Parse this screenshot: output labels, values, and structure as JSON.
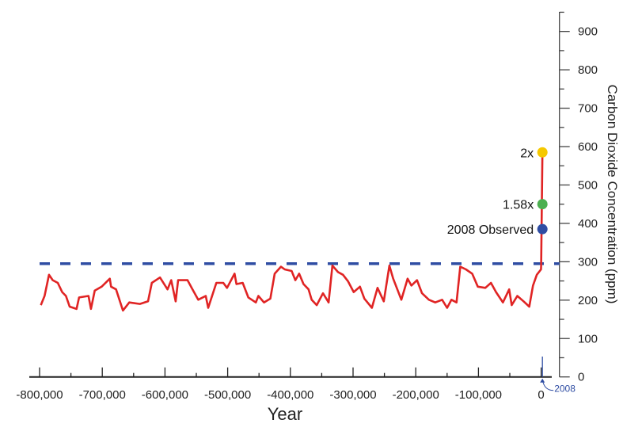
{
  "chart_data": {
    "type": "line",
    "title": "",
    "xlabel": "Year",
    "ylabel": "Carbon Dioxide Concentration (ppm)",
    "xlim": [
      -800000,
      0
    ],
    "ylim": [
      0,
      900
    ],
    "x_ticks": [
      -800000,
      -700000,
      -600000,
      -500000,
      -400000,
      -300000,
      -200000,
      -100000,
      0
    ],
    "x_tick_labels": [
      "-800,000",
      "-700,000",
      "-600,000",
      "-500,000",
      "-400,000",
      "-300,000",
      "-200,000",
      "-100,000",
      "0"
    ],
    "y_ticks": [
      0,
      100,
      200,
      300,
      400,
      500,
      600,
      700,
      800,
      900
    ],
    "y_tick_labels": [
      "0",
      "100",
      "200",
      "300",
      "400",
      "500",
      "600",
      "700",
      "800",
      "900"
    ],
    "y_axis_side": "right",
    "grid": false,
    "reference_line": {
      "y": 295,
      "style": "dashed",
      "color": "#2f4da3"
    },
    "series": [
      {
        "color": "#e02424",
        "x": [
          -798000,
          -792000,
          -785000,
          -779000,
          -771000,
          -764000,
          -758000,
          -752000,
          -741000,
          -737000,
          -722000,
          -718000,
          -712000,
          -701000,
          -688000,
          -686000,
          -678000,
          -667000,
          -657000,
          -640000,
          -627000,
          -621000,
          -608000,
          -596000,
          -590000,
          -583000,
          -579000,
          -564000,
          -556000,
          -547000,
          -535000,
          -531000,
          -518000,
          -507000,
          -501000,
          -489000,
          -486000,
          -476000,
          -467000,
          -455000,
          -451000,
          -442000,
          -432000,
          -425000,
          -415000,
          -409000,
          -398000,
          -392000,
          -386000,
          -379000,
          -371000,
          -366000,
          -358000,
          -348000,
          -339000,
          -333000,
          -324000,
          -316000,
          -308000,
          -299000,
          -289000,
          -282000,
          -270000,
          -261000,
          -251000,
          -242000,
          -236000,
          -223000,
          -213000,
          -207000,
          -198000,
          -190000,
          -179000,
          -169000,
          -158000,
          -150000,
          -143000,
          -135000,
          -129000,
          -120000,
          -110000,
          -101000,
          -89000,
          -80000,
          -72000,
          -61000,
          -51000,
          -47000,
          -38000,
          -28000,
          -19000,
          -13000,
          -7000,
          -300,
          0,
          2008
        ],
        "y": [
          187,
          211,
          266,
          252,
          245,
          221,
          211,
          183,
          177,
          207,
          211,
          177,
          225,
          235,
          256,
          235,
          228,
          173,
          194,
          190,
          197,
          245,
          259,
          228,
          252,
          197,
          252,
          252,
          228,
          201,
          211,
          180,
          245,
          245,
          232,
          269,
          242,
          245,
          207,
          194,
          211,
          194,
          204,
          269,
          287,
          280,
          276,
          252,
          269,
          242,
          228,
          201,
          187,
          218,
          194,
          290,
          273,
          266,
          249,
          221,
          235,
          204,
          180,
          232,
          197,
          290,
          256,
          201,
          256,
          238,
          252,
          218,
          201,
          194,
          201,
          180,
          201,
          194,
          287,
          280,
          269,
          235,
          232,
          245,
          221,
          194,
          228,
          187,
          211,
          197,
          183,
          238,
          266,
          280,
          290,
          585
        ]
      }
    ],
    "annotations": [
      {
        "label": "2x",
        "x": 2008,
        "y": 585,
        "color": "#f5c800"
      },
      {
        "label": "1.58x",
        "x": 2008,
        "y": 450,
        "color": "#4caf50"
      },
      {
        "label": "2008 Observed",
        "x": 2008,
        "y": 385,
        "color": "#2f4da3"
      }
    ],
    "x_marker": {
      "label": "2008",
      "color": "#2f4da3"
    }
  }
}
